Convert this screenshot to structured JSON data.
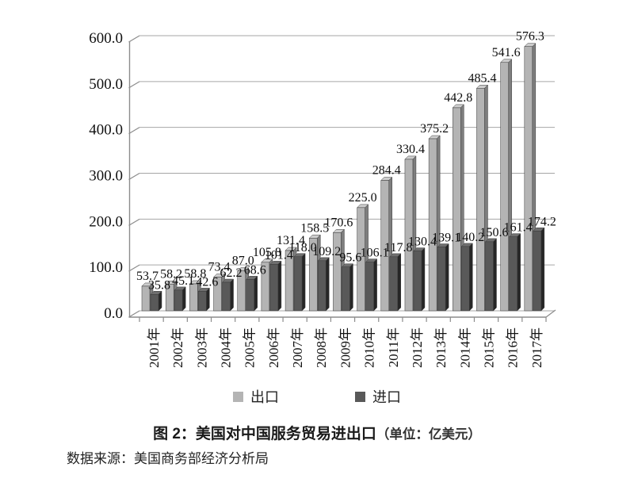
{
  "chart_data": {
    "type": "bar",
    "title": "图 2：美国对中国服务贸易进出口",
    "unit_note": "（单位：亿美元）",
    "categories": [
      "2001年",
      "2002年",
      "2003年",
      "2004年",
      "2005年",
      "2006年",
      "2007年",
      "2008年",
      "2009年",
      "2010年",
      "2011年",
      "2012年",
      "2013年",
      "2014年",
      "2015年",
      "2016年",
      "2017年"
    ],
    "series": [
      {
        "name": "出口",
        "color": "#b4b4b4",
        "side_color": "#7e7e7e",
        "top_color": "#cdcdcd",
        "values": [
          53.7,
          58.2,
          58.8,
          73.4,
          87.0,
          105.8,
          131.4,
          158.5,
          170.6,
          225.0,
          284.4,
          330.4,
          375.2,
          442.8,
          485.4,
          541.6,
          576.3
        ]
      },
      {
        "name": "进口",
        "color": "#595959",
        "side_color": "#262626",
        "top_color": "#6f6f6f",
        "values": [
          35.8,
          45.1,
          42.6,
          62.2,
          68.6,
          101.4,
          118.0,
          109.2,
          95.6,
          106.1,
          117.8,
          130.4,
          139.1,
          140.2,
          150.6,
          161.4,
          174.2
        ]
      }
    ],
    "xlabel": "",
    "ylabel": "",
    "ylim": [
      0,
      600
    ],
    "ytick_step": 100,
    "ytick_labels": [
      "0.0",
      "100.0",
      "200.0",
      "300.0",
      "400.0",
      "500.0",
      "600.0"
    ],
    "grid": true,
    "legend_position": "bottom",
    "style_3d": true
  },
  "legend": {
    "items": [
      {
        "label": "出口"
      },
      {
        "label": "进口"
      }
    ]
  },
  "caption": {
    "title": "图 2：美国对中国服务贸易进出口",
    "unit": "（单位：亿美元）"
  },
  "source": "数据来源：美国商务部经济分析局",
  "colors": {
    "axis": "#8c8c8c",
    "grid": "#a6a6a6",
    "label_text": "#111111",
    "background": "#ffffff"
  }
}
